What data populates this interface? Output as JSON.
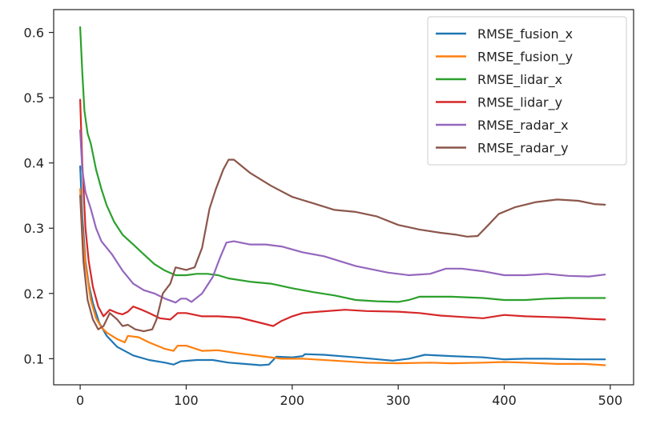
{
  "chart_data": {
    "type": "line",
    "title": "",
    "xlabel": "",
    "ylabel": "",
    "xlim": [
      -25,
      522
    ],
    "ylim": [
      0.06,
      0.635
    ],
    "x_ticks": [
      0,
      100,
      200,
      300,
      400,
      500
    ],
    "y_ticks": [
      0.1,
      0.2,
      0.3,
      0.4,
      0.5,
      0.6
    ],
    "x_tick_labels": [
      "0",
      "100",
      "200",
      "300",
      "400",
      "500"
    ],
    "y_tick_labels": [
      "0.1",
      "0.2",
      "0.3",
      "0.4",
      "0.5",
      "0.6"
    ],
    "grid": false,
    "legend_position": "top-right",
    "series": [
      {
        "name": "RMSE_fusion_x",
        "color": "#1f77b4",
        "points": [
          [
            0,
            0.395
          ],
          [
            2,
            0.32
          ],
          [
            5,
            0.25
          ],
          [
            8,
            0.215
          ],
          [
            12,
            0.185
          ],
          [
            18,
            0.155
          ],
          [
            25,
            0.135
          ],
          [
            35,
            0.118
          ],
          [
            50,
            0.105
          ],
          [
            65,
            0.098
          ],
          [
            80,
            0.094
          ],
          [
            88,
            0.091
          ],
          [
            95,
            0.096
          ],
          [
            110,
            0.098
          ],
          [
            125,
            0.098
          ],
          [
            140,
            0.094
          ],
          [
            155,
            0.092
          ],
          [
            170,
            0.09
          ],
          [
            178,
            0.091
          ],
          [
            185,
            0.103
          ],
          [
            200,
            0.102
          ],
          [
            210,
            0.104
          ],
          [
            212,
            0.107
          ],
          [
            230,
            0.106
          ],
          [
            260,
            0.102
          ],
          [
            295,
            0.097
          ],
          [
            310,
            0.1
          ],
          [
            325,
            0.106
          ],
          [
            350,
            0.104
          ],
          [
            380,
            0.102
          ],
          [
            400,
            0.099
          ],
          [
            420,
            0.1
          ],
          [
            440,
            0.1
          ],
          [
            470,
            0.099
          ],
          [
            495,
            0.099
          ]
        ]
      },
      {
        "name": "RMSE_fusion_y",
        "color": "#ff7f0e",
        "points": [
          [
            0,
            0.36
          ],
          [
            2,
            0.3
          ],
          [
            5,
            0.245
          ],
          [
            10,
            0.19
          ],
          [
            15,
            0.162
          ],
          [
            20,
            0.148
          ],
          [
            25,
            0.14
          ],
          [
            35,
            0.13
          ],
          [
            42,
            0.125
          ],
          [
            45,
            0.135
          ],
          [
            55,
            0.133
          ],
          [
            65,
            0.125
          ],
          [
            80,
            0.115
          ],
          [
            88,
            0.112
          ],
          [
            92,
            0.12
          ],
          [
            100,
            0.12
          ],
          [
            115,
            0.112
          ],
          [
            130,
            0.113
          ],
          [
            150,
            0.108
          ],
          [
            170,
            0.104
          ],
          [
            190,
            0.1
          ],
          [
            210,
            0.1
          ],
          [
            240,
            0.097
          ],
          [
            270,
            0.094
          ],
          [
            300,
            0.093
          ],
          [
            330,
            0.094
          ],
          [
            350,
            0.093
          ],
          [
            380,
            0.094
          ],
          [
            400,
            0.095
          ],
          [
            420,
            0.094
          ],
          [
            450,
            0.092
          ],
          [
            475,
            0.092
          ],
          [
            495,
            0.09
          ]
        ]
      },
      {
        "name": "RMSE_lidar_x",
        "color": "#2ca02c",
        "points": [
          [
            0,
            0.608
          ],
          [
            2,
            0.54
          ],
          [
            4,
            0.48
          ],
          [
            7,
            0.445
          ],
          [
            10,
            0.43
          ],
          [
            15,
            0.39
          ],
          [
            20,
            0.36
          ],
          [
            25,
            0.335
          ],
          [
            32,
            0.31
          ],
          [
            40,
            0.29
          ],
          [
            50,
            0.275
          ],
          [
            60,
            0.26
          ],
          [
            70,
            0.245
          ],
          [
            80,
            0.235
          ],
          [
            90,
            0.228
          ],
          [
            100,
            0.228
          ],
          [
            110,
            0.23
          ],
          [
            120,
            0.23
          ],
          [
            130,
            0.228
          ],
          [
            140,
            0.223
          ],
          [
            160,
            0.218
          ],
          [
            180,
            0.215
          ],
          [
            200,
            0.208
          ],
          [
            220,
            0.202
          ],
          [
            240,
            0.197
          ],
          [
            260,
            0.19
          ],
          [
            280,
            0.188
          ],
          [
            300,
            0.187
          ],
          [
            310,
            0.19
          ],
          [
            320,
            0.195
          ],
          [
            350,
            0.195
          ],
          [
            380,
            0.193
          ],
          [
            400,
            0.19
          ],
          [
            420,
            0.19
          ],
          [
            440,
            0.192
          ],
          [
            460,
            0.193
          ],
          [
            480,
            0.193
          ],
          [
            495,
            0.193
          ]
        ]
      },
      {
        "name": "RMSE_lidar_y",
        "color": "#d62728",
        "points": [
          [
            0,
            0.497
          ],
          [
            2,
            0.4
          ],
          [
            5,
            0.3
          ],
          [
            8,
            0.25
          ],
          [
            12,
            0.21
          ],
          [
            17,
            0.18
          ],
          [
            22,
            0.165
          ],
          [
            28,
            0.175
          ],
          [
            35,
            0.17
          ],
          [
            40,
            0.168
          ],
          [
            45,
            0.172
          ],
          [
            50,
            0.18
          ],
          [
            58,
            0.175
          ],
          [
            65,
            0.17
          ],
          [
            75,
            0.162
          ],
          [
            85,
            0.16
          ],
          [
            92,
            0.17
          ],
          [
            100,
            0.17
          ],
          [
            115,
            0.165
          ],
          [
            130,
            0.165
          ],
          [
            150,
            0.163
          ],
          [
            170,
            0.155
          ],
          [
            182,
            0.15
          ],
          [
            190,
            0.158
          ],
          [
            200,
            0.165
          ],
          [
            210,
            0.17
          ],
          [
            225,
            0.172
          ],
          [
            250,
            0.175
          ],
          [
            270,
            0.173
          ],
          [
            300,
            0.172
          ],
          [
            320,
            0.17
          ],
          [
            340,
            0.166
          ],
          [
            360,
            0.164
          ],
          [
            380,
            0.162
          ],
          [
            400,
            0.167
          ],
          [
            420,
            0.165
          ],
          [
            440,
            0.164
          ],
          [
            460,
            0.163
          ],
          [
            480,
            0.161
          ],
          [
            495,
            0.16
          ]
        ]
      },
      {
        "name": "RMSE_radar_x",
        "color": "#9467bd",
        "points": [
          [
            0,
            0.45
          ],
          [
            2,
            0.39
          ],
          [
            5,
            0.355
          ],
          [
            10,
            0.33
          ],
          [
            15,
            0.3
          ],
          [
            20,
            0.28
          ],
          [
            30,
            0.26
          ],
          [
            40,
            0.235
          ],
          [
            50,
            0.215
          ],
          [
            60,
            0.205
          ],
          [
            70,
            0.2
          ],
          [
            80,
            0.192
          ],
          [
            90,
            0.186
          ],
          [
            95,
            0.192
          ],
          [
            100,
            0.192
          ],
          [
            105,
            0.187
          ],
          [
            115,
            0.2
          ],
          [
            125,
            0.225
          ],
          [
            132,
            0.255
          ],
          [
            138,
            0.278
          ],
          [
            145,
            0.28
          ],
          [
            160,
            0.275
          ],
          [
            175,
            0.275
          ],
          [
            190,
            0.272
          ],
          [
            210,
            0.263
          ],
          [
            230,
            0.257
          ],
          [
            260,
            0.242
          ],
          [
            290,
            0.232
          ],
          [
            310,
            0.228
          ],
          [
            330,
            0.23
          ],
          [
            345,
            0.238
          ],
          [
            360,
            0.238
          ],
          [
            380,
            0.234
          ],
          [
            400,
            0.228
          ],
          [
            420,
            0.228
          ],
          [
            440,
            0.23
          ],
          [
            460,
            0.227
          ],
          [
            480,
            0.226
          ],
          [
            495,
            0.229
          ]
        ]
      },
      {
        "name": "RMSE_radar_y",
        "color": "#8c564b",
        "points": [
          [
            0,
            0.35
          ],
          [
            3,
            0.25
          ],
          [
            7,
            0.19
          ],
          [
            12,
            0.16
          ],
          [
            17,
            0.145
          ],
          [
            22,
            0.15
          ],
          [
            28,
            0.17
          ],
          [
            35,
            0.16
          ],
          [
            40,
            0.15
          ],
          [
            45,
            0.152
          ],
          [
            52,
            0.145
          ],
          [
            60,
            0.142
          ],
          [
            68,
            0.145
          ],
          [
            72,
            0.16
          ],
          [
            78,
            0.2
          ],
          [
            85,
            0.215
          ],
          [
            90,
            0.24
          ],
          [
            100,
            0.236
          ],
          [
            108,
            0.24
          ],
          [
            115,
            0.27
          ],
          [
            122,
            0.33
          ],
          [
            128,
            0.36
          ],
          [
            135,
            0.39
          ],
          [
            140,
            0.405
          ],
          [
            145,
            0.405
          ],
          [
            160,
            0.385
          ],
          [
            180,
            0.365
          ],
          [
            200,
            0.348
          ],
          [
            220,
            0.338
          ],
          [
            240,
            0.328
          ],
          [
            260,
            0.325
          ],
          [
            280,
            0.318
          ],
          [
            300,
            0.305
          ],
          [
            320,
            0.298
          ],
          [
            340,
            0.293
          ],
          [
            355,
            0.29
          ],
          [
            365,
            0.287
          ],
          [
            375,
            0.288
          ],
          [
            385,
            0.305
          ],
          [
            395,
            0.322
          ],
          [
            410,
            0.332
          ],
          [
            430,
            0.34
          ],
          [
            450,
            0.344
          ],
          [
            470,
            0.342
          ],
          [
            485,
            0.337
          ],
          [
            495,
            0.336
          ]
        ]
      }
    ]
  }
}
